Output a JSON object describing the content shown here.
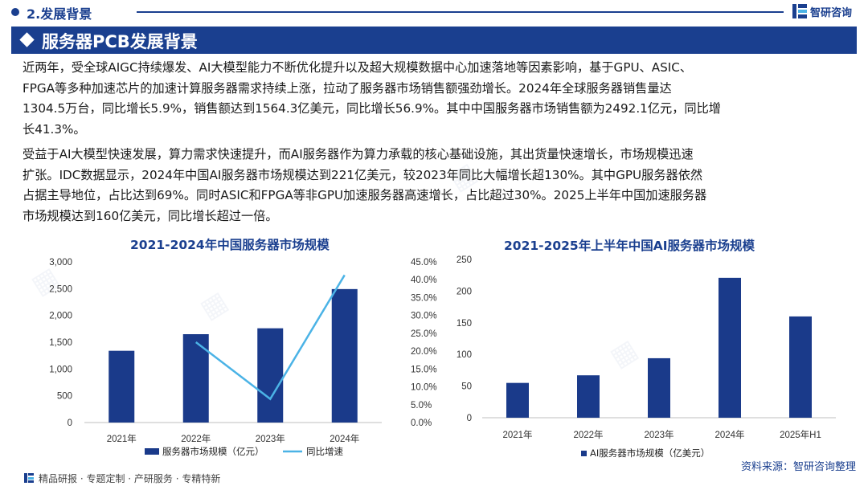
{
  "header": {
    "section_title": "2.发展背景",
    "brand": "智研咨询"
  },
  "banner": {
    "title": "服务器PCB发展背景"
  },
  "paragraphs": {
    "p1_lines": [
      "近两年，受全球AIGC持续爆发、AI大模型能力不断优化提升以及超大规模数据中心加速落地等因素影响，基于GPU、ASIC、",
      "FPGA等多种加速芯片的加速计算服务器需求持续上涨，拉动了服务器市场销售额强劲增长。2024年全球服务器销售量达",
      "1304.5万台，同比增长5.9%，销售额达到1564.3亿美元，同比增长56.9%。其中中国服务器市场销售额为2492.1亿元，同比增",
      "长41.3%。"
    ],
    "p2_lines": [
      "受益于AI大模型快速发展，算力需求快速提升，而AI服务器作为算力承载的核心基础设施，其出货量快速增长，市场规模迅速",
      "扩张。IDC数据显示，2024年中国AI服务器市场规模达到221亿美元，较2023年同比大幅增长超130%。其中GPU服务器依然",
      "占据主导地位，占比达到69%。同时ASIC和FPGA等非GPU加速服务器高速增长，占比超过30%。2025上半年中国加速服务器",
      "市场规模达到160亿美元，同比增长超过一倍。"
    ]
  },
  "chart_data": [
    {
      "type": "bar",
      "title": "2021-2024年中国服务器市场规模",
      "categories": [
        "2021年",
        "2022年",
        "2023年",
        "2024年"
      ],
      "series": [
        {
          "name": "服务器市场规模（亿元）",
          "type": "bar",
          "axis": "left",
          "values": [
            1340,
            1650,
            1760,
            2492.1
          ]
        },
        {
          "name": "同比增速",
          "type": "line",
          "axis": "right",
          "values": [
            null,
            22.5,
            6.6,
            41.3
          ]
        }
      ],
      "y_left": {
        "ylim": [
          0,
          3000
        ],
        "ticks": [
          "0",
          "500",
          "1,000",
          "1,500",
          "2,000",
          "2,500",
          "3,000"
        ]
      },
      "y_right": {
        "ylim": [
          0,
          45
        ],
        "ticks": [
          "0.0%",
          "5.0%",
          "10.0%",
          "15.0%",
          "20.0%",
          "25.0%",
          "30.0%",
          "35.0%",
          "40.0%",
          "45.0%"
        ]
      },
      "grid": false,
      "legend": "bottom",
      "colors": {
        "bar": "#1a3a8a",
        "line": "#4bb3e6"
      }
    },
    {
      "type": "bar",
      "title": "2021-2025年上半年中国AI服务器市场规模",
      "categories": [
        "2021年",
        "2022年",
        "2023年",
        "2024年",
        "2025年H1"
      ],
      "series": [
        {
          "name": "AI服务器市场规模（亿美元）",
          "values": [
            55,
            67,
            94,
            221,
            160
          ]
        }
      ],
      "ylim": [
        0,
        250
      ],
      "yticks": [
        "0",
        "50",
        "100",
        "150",
        "200",
        "250"
      ],
      "grid": false,
      "legend": "bottom",
      "colors": {
        "bar": "#1a3a8a"
      }
    }
  ],
  "source": "资料来源：智研咨询整理",
  "footer": {
    "text": "精品研报 · 专题定制 · 产研服务 · 专精特新"
  }
}
